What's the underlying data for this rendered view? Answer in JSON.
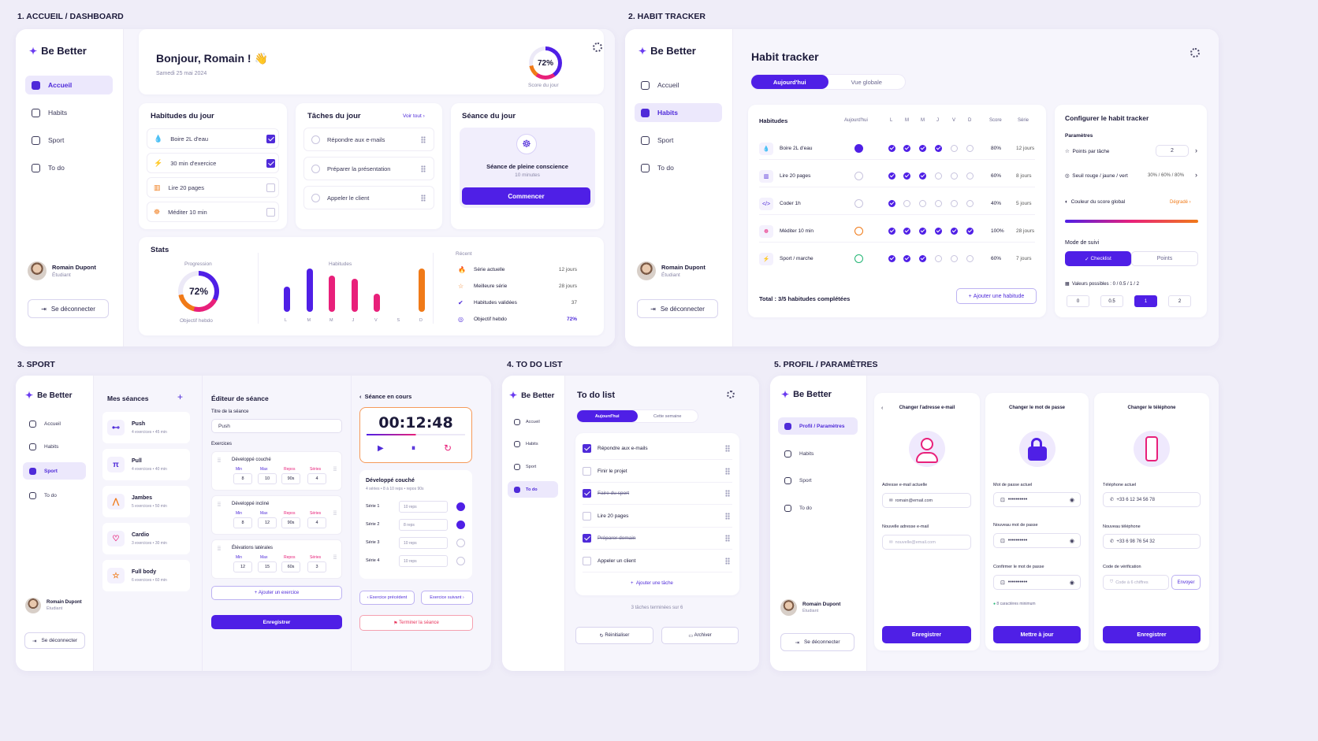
{
  "sections": {
    "dashboard": "1. ACCUEIL / DASHBOARD",
    "habit": "2. HABIT TRACKER",
    "sport": "3. SPORT",
    "todo": "4. TO DO LIST",
    "profile": "5. PROFIL / PARAMÈTRES"
  },
  "brand": "Be Better",
  "nav": {
    "home": "Accueil",
    "habits": "Habits",
    "sport": "Sport",
    "todo": "To do",
    "profile": "Profil / Paramètres"
  },
  "user": {
    "name": "Romain Dupont",
    "role": "Étudiant",
    "logout": "Se déconnecter"
  },
  "dashboard": {
    "greeting": "Bonjour, Romain ! 👋",
    "date": "Samedi 25 mai 2024",
    "score": "72%",
    "score_label": "Score du jour",
    "habits_title": "Habitudes du jour",
    "habits": [
      {
        "label": "Boire 2L d'eau",
        "done": true
      },
      {
        "label": "30 min d'exercice",
        "done": true
      },
      {
        "label": "Lire 20 pages",
        "done": false
      },
      {
        "label": "Méditer 10 min",
        "done": false
      }
    ],
    "tasks_title": "Tâches du jour",
    "see_all": "Voir tout",
    "tasks": [
      "Répondre aux e-mails",
      "Préparer la présentation",
      "Appeler le client"
    ],
    "session_title": "Séance du jour",
    "session_name": "Séance de pleine conscience",
    "session_duration": "10 minutes",
    "start": "Commencer",
    "stats_title": "Stats",
    "progression": "Progression",
    "progress_value": "72%",
    "progress_fraction": 0.72,
    "weekly_goal": "Objectif hebdo",
    "habits_chart_title": "Habitudes",
    "recent": "Récent",
    "recent_items": [
      {
        "label": "Série actuelle",
        "value": "12 jours"
      },
      {
        "label": "Meilleure série",
        "value": "28 jours"
      },
      {
        "label": "Habitudes validées",
        "value": "37"
      },
      {
        "label": "Objectif hebdo",
        "value": "72%"
      }
    ]
  },
  "chart_data": {
    "type": "bar",
    "title": "Habitudes",
    "categories": [
      "L",
      "M",
      "M",
      "J",
      "V",
      "S",
      "D"
    ],
    "values": [
      28,
      48,
      40,
      37,
      20,
      0,
      48
    ],
    "colors": [
      "#4f1fe6",
      "#4f1fe6",
      "#e8207a",
      "#e8207a",
      "#e8207a",
      "#f07a18",
      "#f07a18"
    ]
  },
  "habit": {
    "title": "Habit tracker",
    "tab_today": "Aujourd'hui",
    "tab_global": "Vue globale",
    "headers": {
      "habits": "Habitudes",
      "today": "Aujourd'hui",
      "days": [
        "L",
        "M",
        "M",
        "J",
        "V",
        "D"
      ],
      "score": "Score",
      "series": "Série"
    },
    "rows": [
      {
        "label": "Boire 2L d'eau",
        "today": "done",
        "days": [
          1,
          1,
          1,
          1,
          0,
          0
        ],
        "score": "80%",
        "series": "12 jours"
      },
      {
        "label": "Lire 20 pages",
        "today": "empty",
        "days": [
          1,
          1,
          1,
          0,
          0,
          0
        ],
        "score": "60%",
        "series": "8 jours"
      },
      {
        "label": "Coder 1h",
        "today": "empty",
        "days": [
          1,
          0,
          0,
          0,
          0,
          0
        ],
        "score": "40%",
        "series": "5 jours"
      },
      {
        "label": "Méditer 10 min",
        "today": "orange",
        "days": [
          1,
          1,
          1,
          1,
          1,
          1
        ],
        "score": "100%",
        "series": "28 jours"
      },
      {
        "label": "Sport / marche",
        "today": "green",
        "days": [
          1,
          1,
          1,
          0,
          0,
          0
        ],
        "score": "60%",
        "series": "7 jours"
      }
    ],
    "total": "Total : 3/5 habitudes complétées",
    "add": "Ajouter une habitude",
    "config_title": "Configurer le habit tracker",
    "params": "Paramètres",
    "points_per_task": "Points par tâche",
    "points_value": "2",
    "thresholds": "Seuil rouge / jaune / vert",
    "thresholds_value": "30% / 60% / 80%",
    "score_color": "Couleur du score global",
    "gradient": "Dégradé",
    "mode": "Mode de suivi",
    "mode_checklist": "Checklist",
    "mode_points": "Points",
    "possible_values": "Valeurs possibles : 0 / 0.5 / 1 / 2",
    "values": [
      "0",
      "0.5",
      "1",
      "2"
    ]
  },
  "sport": {
    "my_sessions": "Mes séances",
    "sessions": [
      {
        "name": "Push",
        "meta": "4 exercices • 45 min"
      },
      {
        "name": "Pull",
        "meta": "4 exercices • 40 min"
      },
      {
        "name": "Jambes",
        "meta": "5 exercices • 50 min"
      },
      {
        "name": "Cardio",
        "meta": "3 exercices • 30 min"
      },
      {
        "name": "Full body",
        "meta": "6 exercices • 60 min"
      }
    ],
    "editor": "Éditeur de séance",
    "session_title_label": "Titre de la séance",
    "session_title_value": "Push",
    "exercises": "Exercices",
    "cols": [
      "Min",
      "Max",
      "Repos",
      "Séries"
    ],
    "exercise_list": [
      {
        "name": "Développé couché",
        "vals": [
          "8",
          "10",
          "90s",
          "4"
        ]
      },
      {
        "name": "Développé incliné",
        "vals": [
          "8",
          "12",
          "90s",
          "4"
        ]
      },
      {
        "name": "Élévations latérales",
        "vals": [
          "12",
          "15",
          "60s",
          "3"
        ]
      }
    ],
    "add_exercise": "Ajouter un exercice",
    "save": "Enregistrer",
    "current": "Séance en cours",
    "timer": "00:12:48",
    "current_ex": "Développé couché",
    "current_meta": "4 séries • 8 à 10 reps • repos 90s",
    "sets": [
      {
        "label": "Série 1",
        "value": "10 reps",
        "done": true
      },
      {
        "label": "Série 2",
        "value": "8 reps",
        "done": true
      },
      {
        "label": "Série 3",
        "value": "10 reps",
        "done": false
      },
      {
        "label": "Série 4",
        "value": "10 reps",
        "done": false
      }
    ],
    "prev": "Exercice précédent",
    "next": "Exercice suivant",
    "finish": "Terminer la séance"
  },
  "todo": {
    "title": "To do list",
    "tab_today": "Aujourd'hui",
    "tab_week": "Cette semaine",
    "items": [
      {
        "label": "Répondre aux e-mails",
        "done": true
      },
      {
        "label": "Finir le projet",
        "done": false
      },
      {
        "label": "Faire du sport",
        "done": true
      },
      {
        "label": "Lire 20 pages",
        "done": false
      },
      {
        "label": "Préparer demain",
        "done": true
      },
      {
        "label": "Appeler un client",
        "done": false
      }
    ],
    "add": "Ajouter une tâche",
    "summary": "3 tâches terminées sur 6",
    "reset": "Réinitialiser",
    "archive": "Archiver"
  },
  "profile": {
    "email_title": "Changer l'adresse e-mail",
    "email_current_label": "Adresse e-mail actuelle",
    "email_current": "romain@email.com",
    "email_new_label": "Nouvelle adresse e-mail",
    "email_new_ph": "nouvelle@email.com",
    "pwd_title": "Changer le mot de passe",
    "pwd_current": "Mot de passe actuel",
    "pwd_new": "Nouveau mot de passe",
    "pwd_confirm": "Confirmer le mot de passe",
    "pwd_mask": "••••••••••",
    "pwd_hint": "8 caractères minimum",
    "phone_title": "Changer le téléphone",
    "phone_current_label": "Téléphone actuel",
    "phone_current": "+33 6 12 34 56 78",
    "phone_new_label": "Nouveau téléphone",
    "phone_new": "+33 6 98 76 54 32",
    "code_label": "Code de vérification",
    "code_ph": "Code à 6 chiffres",
    "send": "Envoyer",
    "save": "Enregistrer",
    "update": "Mettre à jour"
  }
}
